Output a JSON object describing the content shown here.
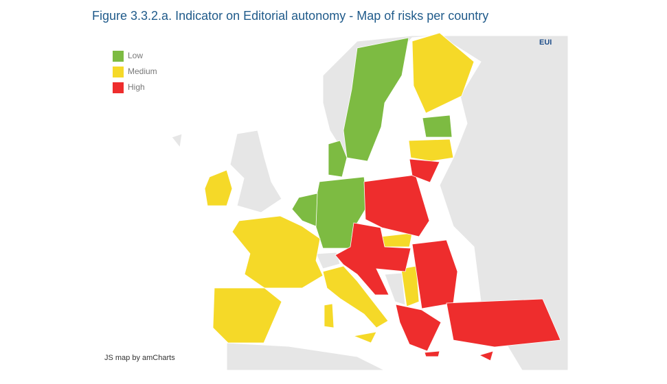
{
  "title": "Figure 3.3.2.a. Indicator on Editorial autonomy - Map of risks per country",
  "legend": [
    {
      "label": "Low",
      "color": "#7dbb42"
    },
    {
      "label": "Medium",
      "color": "#f5d928"
    },
    {
      "label": "High",
      "color": "#ee2d2d"
    }
  ],
  "logo": "EUI",
  "credit": "JS map by amCharts"
}
